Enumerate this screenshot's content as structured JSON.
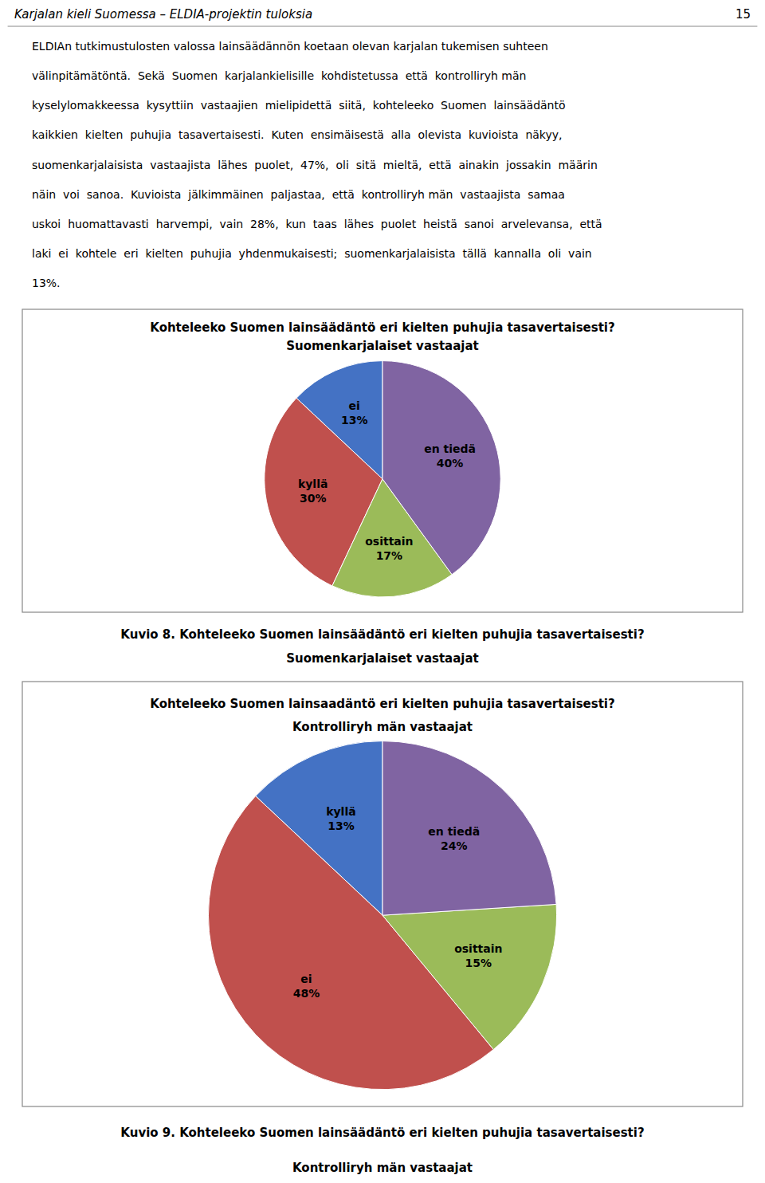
{
  "page_header": "Karjalan kieli Suomessa – ELDIA-projektin tuloksia",
  "page_number": "15",
  "body_lines": [
    "ELDIAn tutkimustulosten valossa lainsäädännön koetaan olevan karjalan tukemisen suhteen",
    "välinpitämätöntä.  Sekä  Suomen  karjalankielisille  kohdistetussa  että  kontrolliryh män",
    "kyselylomakkeessa  kysyttiin  vastaajien  mielipidettä  siitä,  kohteleeko  Suomen  lainsäädäntö",
    "kaikkien  kielten  puhujia  tasavertaisesti.  Kuten  ensimäisestä  alla  olevista  kuvioista  näkyy,",
    "suomenkarjalaisista  vastaajista  lähes  puolet,  47%,  oli  sitä  mieltä,  että  ainakin  jossakin  määrin",
    "näin  voi  sanoa.  Kuvioista  jälkimmäinen  paljastaa,  että  kontrolliryh män  vastaajista  samaa",
    "uskoi  huomattavasti  harvempi,  vain  28%,  kun  taas  lähes  puolet  heistä  sanoi  arvelevansa,  että",
    "laki  ei  kohtele  eri  kielten  puhujia  yhdenmukaisesti;  suomenkarjalaisista  tällä  kannalla  oli  vain",
    "13%."
  ],
  "chart_data": [
    {
      "type": "pie",
      "title": "Kohteleeko Suomen lainsäädäntö eri kielten puhujia tasavertaisesti?",
      "subtitle": "Suomenkarjalaiset vastaajat",
      "categories": [
        "ei",
        "kyllä",
        "osittain",
        "en tiedä"
      ],
      "values": [
        13,
        30,
        17,
        40
      ],
      "value_labels": [
        "13%",
        "30%",
        "17%",
        "40%"
      ],
      "colors": [
        "#4472C4",
        "#C0504D",
        "#9BBB59",
        "#8064A2"
      ],
      "data_labels": true,
      "caption": [
        "Kuvio 8. Kohteleeko Suomen lainsäädäntö eri kielten puhujia tasavertaisesti?",
        "Suomenkarjalaiset vastaajat"
      ]
    },
    {
      "type": "pie",
      "title": "Kohteleeko Suomen lainsaadäntö eri kielten puhujia tasavertaisesti?",
      "subtitle": "Kontrolliryh män vastaajat",
      "categories": [
        "kyllä",
        "ei",
        "osittain",
        "en tiedä"
      ],
      "values": [
        13,
        48,
        15,
        24
      ],
      "value_labels": [
        "13%",
        "48%",
        "15%",
        "24%"
      ],
      "colors": [
        "#4472C4",
        "#C0504D",
        "#9BBB59",
        "#8064A2"
      ],
      "data_labels": true,
      "caption": [
        "Kuvio 9. Kohteleeko Suomen lainsäädäntö eri kielten puhujia tasavertaisesti?",
        "Kontrolliryh män vastaajat"
      ]
    }
  ]
}
